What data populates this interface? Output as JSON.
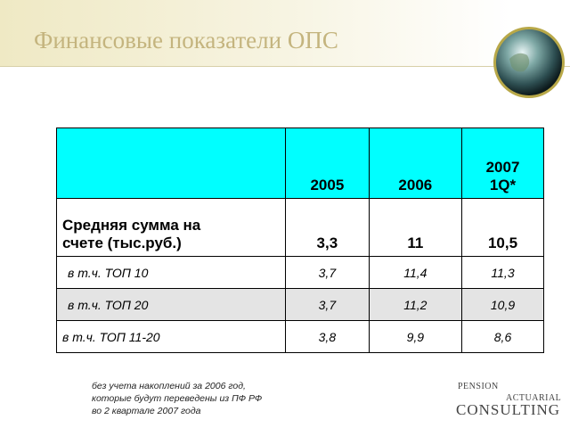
{
  "header": {
    "title": "Финансовые показатели ОПС"
  },
  "table": {
    "columns": [
      "2005",
      "2006",
      [
        "2007",
        "1Q*"
      ]
    ],
    "rows": [
      [
        "Средняя сумма на счете (тыс.руб.)",
        "3,3",
        "11",
        "10,5"
      ],
      [
        "в т.ч. ТОП 10",
        "3,7",
        "11,4",
        "11,3"
      ],
      [
        "в т.ч. ТОП 20",
        "3,7",
        "11,2",
        "10,9"
      ],
      [
        "в т.ч. ТОП 11-20",
        "3,8",
        "9,9",
        "8,6"
      ]
    ]
  },
  "footnote": [
    "без учета накоплений за 2006 год,",
    "которые будут переведены из ПФ РФ",
    "во 2 квартале 2007 года"
  ],
  "logo": {
    "top": "PENSION",
    "middle": "ACTUARIAL",
    "bottom": "CONSULTING"
  }
}
